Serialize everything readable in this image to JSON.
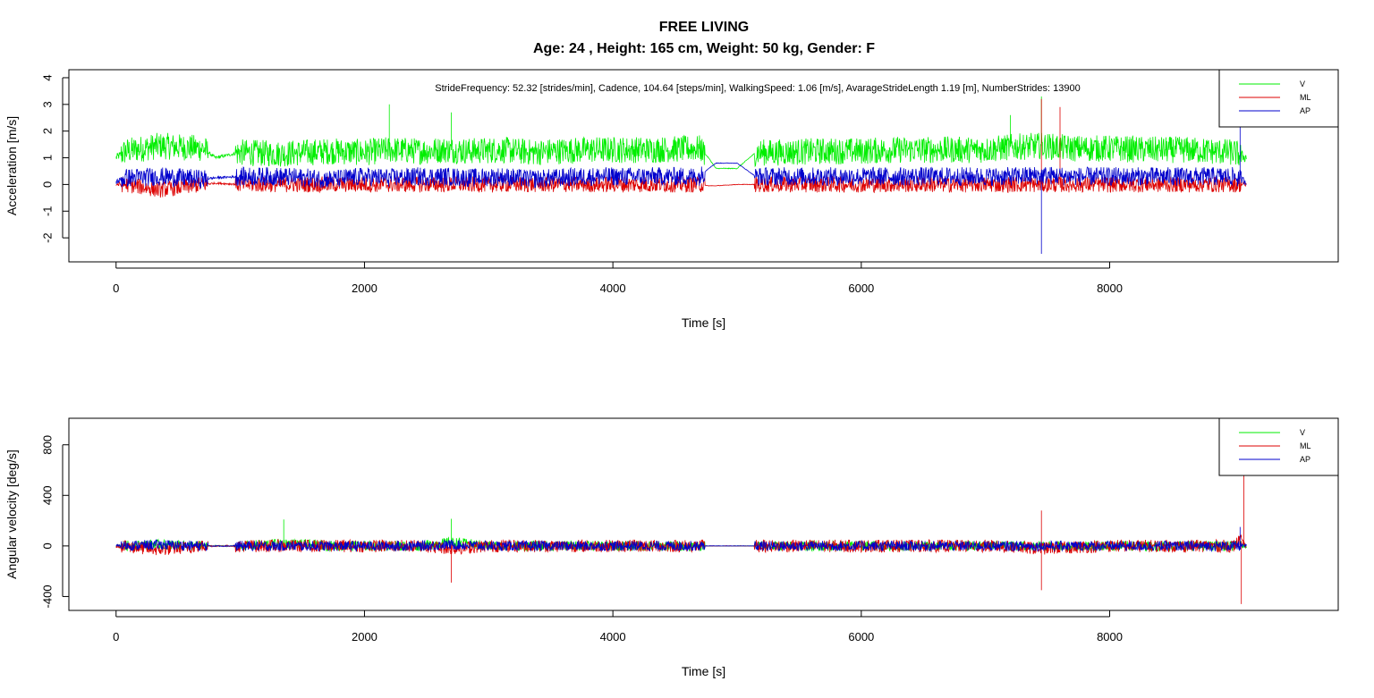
{
  "figure": {
    "title": "FREE LIVING",
    "subtitle": "Age: 24 , Height:  165 cm, Weight:  50 kg, Gender:  F"
  },
  "series_colors": {
    "V": "#00ee00",
    "ML": "#dd0000",
    "AP": "#0000cc"
  },
  "chart_data": [
    {
      "type": "line",
      "title": "",
      "annotation": "StrideFrequency:  52.32 [strides/min],    Cadence, 104.64 [steps/min],     WalkingSpeed: 1.06 [m/s],    AvarageStrideLength 1.19 [m],    NumberStrides: 13900",
      "xlabel": "Time [s]",
      "ylabel": "Acceleration [m/s]",
      "xlim": [
        -380,
        9840
      ],
      "ylim": [
        -2.9,
        4.3
      ],
      "xticks": [
        0,
        2000,
        4000,
        6000,
        8000
      ],
      "yticks": [
        -2,
        -1,
        0,
        1,
        2,
        3,
        4
      ],
      "legend_position": "top-right",
      "grid": false,
      "series": [
        {
          "name": "V",
          "x": [
            0,
            80,
            350,
            700,
            800,
            1000,
            1300,
            1750,
            2000,
            2200,
            2450,
            2650,
            2850,
            3100,
            3350,
            3550,
            3800,
            4050,
            4300,
            4700,
            4770,
            4830,
            5000,
            5150,
            5300,
            5700,
            6000,
            6300,
            6700,
            7000,
            7200,
            7450,
            7700,
            8000,
            8300,
            8600,
            9000,
            9100
          ],
          "y": [
            1.0,
            1.25,
            1.45,
            1.35,
            1.0,
            1.2,
            1.15,
            1.25,
            1.2,
            1.3,
            1.25,
            1.3,
            1.25,
            1.3,
            1.2,
            1.25,
            1.3,
            1.3,
            1.3,
            1.35,
            1.0,
            0.6,
            0.6,
            1.2,
            1.2,
            1.25,
            1.25,
            1.3,
            1.3,
            1.3,
            1.4,
            1.45,
            1.35,
            1.35,
            1.3,
            1.3,
            1.2,
            1.0
          ]
        },
        {
          "name": "ML",
          "x": [
            0,
            80,
            350,
            700,
            800,
            1000,
            1300,
            1750,
            2000,
            2200,
            2450,
            2650,
            2850,
            3100,
            3350,
            3550,
            3800,
            4050,
            4300,
            4700,
            4770,
            4830,
            5000,
            5150,
            5300,
            5700,
            6000,
            6300,
            6700,
            7000,
            7200,
            7450,
            7700,
            8000,
            8300,
            8600,
            9000,
            9100
          ],
          "y": [
            0.0,
            0.0,
            -0.2,
            0.0,
            0.05,
            0.0,
            0.0,
            0.0,
            0.0,
            0.0,
            0.0,
            0.0,
            0.0,
            0.0,
            0.0,
            0.0,
            0.0,
            0.0,
            0.0,
            0.0,
            -0.05,
            -0.05,
            0.0,
            0.0,
            0.0,
            0.0,
            0.0,
            0.0,
            0.0,
            0.0,
            0.0,
            0.0,
            0.0,
            0.0,
            0.0,
            0.0,
            0.0,
            0.0
          ]
        },
        {
          "name": "AP",
          "x": [
            0,
            80,
            350,
            700,
            800,
            1000,
            1300,
            1750,
            2000,
            2200,
            2450,
            2650,
            2850,
            3100,
            3350,
            3550,
            3800,
            4050,
            4300,
            4700,
            4770,
            4830,
            5000,
            5150,
            5300,
            5700,
            6000,
            6300,
            6700,
            7000,
            7200,
            7450,
            7700,
            8000,
            8300,
            8600,
            9000,
            9100
          ],
          "y": [
            0.1,
            0.25,
            0.3,
            0.2,
            0.25,
            0.3,
            0.3,
            0.2,
            0.3,
            0.25,
            0.3,
            0.3,
            0.25,
            0.3,
            0.2,
            0.25,
            0.3,
            0.3,
            0.3,
            0.3,
            0.6,
            0.8,
            0.8,
            0.3,
            0.3,
            0.3,
            0.3,
            0.3,
            0.3,
            0.3,
            0.3,
            0.35,
            0.3,
            0.3,
            0.3,
            0.3,
            0.3,
            0.1
          ]
        }
      ]
    },
    {
      "type": "line",
      "title": "",
      "xlabel": "Time [s]",
      "ylabel": "Angular velocity [deg/s]",
      "xlim": [
        -380,
        9840
      ],
      "ylim": [
        -510,
        1010
      ],
      "xticks": [
        0,
        2000,
        4000,
        6000,
        8000
      ],
      "yticks": [
        -400,
        0,
        400,
        800
      ],
      "legend_position": "top-right",
      "grid": false,
      "series": [
        {
          "name": "V",
          "x": [
            0,
            350,
            700,
            1000,
            1350,
            1750,
            2000,
            2450,
            2700,
            3000,
            3500,
            4000,
            4500,
            4700,
            5150,
            5500,
            6000,
            6500,
            7000,
            7450,
            8000,
            8500,
            9000,
            9050,
            9100
          ],
          "y": [
            0,
            10,
            0,
            0,
            20,
            0,
            0,
            0,
            30,
            0,
            0,
            0,
            0,
            0,
            0,
            0,
            0,
            0,
            0,
            0,
            0,
            0,
            0,
            0,
            0
          ]
        },
        {
          "name": "ML",
          "x": [
            0,
            350,
            700,
            1000,
            1350,
            1750,
            2000,
            2450,
            2700,
            3000,
            3500,
            4000,
            4500,
            4700,
            5150,
            5500,
            6000,
            6500,
            7000,
            7450,
            8000,
            8500,
            9000,
            9050,
            9100
          ],
          "y": [
            0,
            -30,
            0,
            0,
            0,
            0,
            0,
            0,
            -20,
            0,
            0,
            0,
            0,
            0,
            0,
            0,
            0,
            0,
            0,
            -20,
            0,
            0,
            0,
            50,
            0
          ]
        },
        {
          "name": "AP",
          "x": [
            0,
            350,
            700,
            1000,
            1350,
            1750,
            2000,
            2450,
            2700,
            3000,
            3500,
            4000,
            4500,
            4700,
            5150,
            5500,
            6000,
            6500,
            7000,
            7450,
            8000,
            8500,
            9000,
            9050,
            9100
          ],
          "y": [
            0,
            10,
            0,
            0,
            0,
            0,
            0,
            0,
            10,
            0,
            0,
            0,
            0,
            0,
            0,
            0,
            0,
            0,
            0,
            0,
            0,
            0,
            0,
            0,
            0
          ]
        }
      ]
    }
  ]
}
